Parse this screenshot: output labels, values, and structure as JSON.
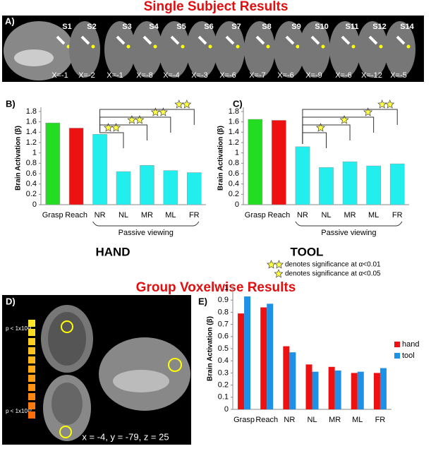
{
  "figure": {
    "title_top": "Single Subject Results",
    "title_bottom": "Group Voxelwise Results",
    "panel_labels": [
      "A)",
      "B)",
      "C)",
      "D)",
      "E)"
    ],
    "subjects": [
      "S1",
      "S2",
      "S3",
      "S4",
      "S5",
      "S6",
      "S7",
      "S8",
      "S9",
      "S10",
      "S11",
      "S12",
      "S14"
    ],
    "x_coords": [
      "X=-1",
      "X=-2",
      "X=-1",
      "X=-8",
      "X=-4",
      "X=-3",
      "X=-6",
      "X=-7",
      "X=-6",
      "X=-9",
      "X=-6",
      "X=-12",
      "X=-5"
    ],
    "sig_notes": [
      "denotes significance at α<0.01",
      "denotes significance at α<0.05"
    ],
    "colorbar_labels": [
      "p < 1x10²³",
      "p < 1x10¹⁰"
    ],
    "coordinates": "x = -4, y = -79, z = 25"
  },
  "chart_data": [
    {
      "type": "bar",
      "title": "HAND",
      "ylabel": "Brain Activation (β)",
      "categories": [
        "Grasp",
        "Reach",
        "NR",
        "NL",
        "MR",
        "ML",
        "FR"
      ],
      "values": [
        1.58,
        1.48,
        1.36,
        0.64,
        0.76,
        0.66,
        0.62
      ],
      "colors": [
        "#22dd22",
        "#ee1111",
        "#22eeee",
        "#22eeee",
        "#22eeee",
        "#22eeee",
        "#22eeee"
      ],
      "significance_stars": [
        null,
        null,
        null,
        2,
        2,
        2,
        2
      ],
      "group_label": "Passive viewing",
      "ylim": [
        0,
        1.8
      ],
      "yticks": [
        0,
        0.2,
        0.4,
        0.6,
        0.8,
        1,
        1.2,
        1.4,
        1.6,
        1.8
      ]
    },
    {
      "type": "bar",
      "title": "TOOL",
      "ylabel": "Brain Activation (β)",
      "categories": [
        "Grasp",
        "Reach",
        "NR",
        "NL",
        "MR",
        "ML",
        "FR"
      ],
      "values": [
        1.65,
        1.63,
        1.12,
        0.72,
        0.83,
        0.75,
        0.79
      ],
      "colors": [
        "#22dd22",
        "#ee1111",
        "#22eeee",
        "#22eeee",
        "#22eeee",
        "#22eeee",
        "#22eeee"
      ],
      "significance_stars": [
        null,
        null,
        null,
        1,
        1,
        1,
        2
      ],
      "group_label": "Passive viewing",
      "ylim": [
        0,
        1.8
      ],
      "yticks": [
        0,
        0.2,
        0.4,
        0.6,
        0.8,
        1,
        1.2,
        1.4,
        1.6,
        1.8
      ]
    },
    {
      "type": "grouped_bar",
      "ylabel": "Brain Activation (β)",
      "categories": [
        "Grasp",
        "Reach",
        "NR",
        "NL",
        "MR",
        "ML",
        "FR"
      ],
      "series": [
        {
          "name": "hand",
          "color": "#ee1111",
          "values": [
            0.79,
            0.84,
            0.52,
            0.37,
            0.35,
            0.3,
            0.3
          ]
        },
        {
          "name": "tool",
          "color": "#1e90e6",
          "values": [
            0.93,
            0.87,
            0.47,
            0.31,
            0.32,
            0.31,
            0.34
          ]
        }
      ],
      "legend": "right",
      "ylim": [
        0,
        1
      ],
      "yticks": [
        0,
        0.1,
        0.2,
        0.3,
        0.4,
        0.5,
        0.6,
        0.7,
        0.8,
        0.9,
        1
      ]
    }
  ]
}
